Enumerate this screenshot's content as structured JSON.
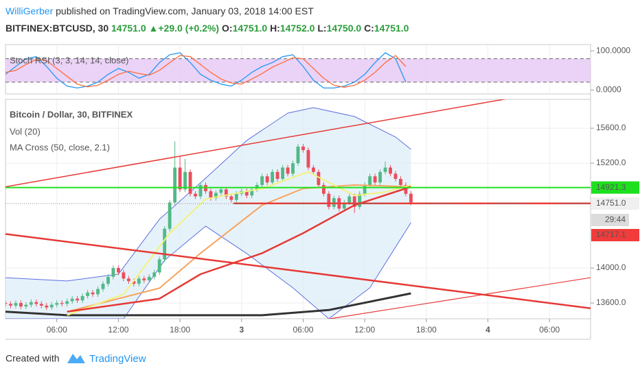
{
  "header": {
    "author": "WilliGerber",
    "published": " published on TradingView.com, January 03, 2018 14:00 EST",
    "symbol": "BITFINEX:BTCUSD, 30",
    "last": "14751.0",
    "arrow": "▲",
    "change": "+29.0 (+0.2%)",
    "o_key": "O:",
    "o_val": "14751.0",
    "h_key": "H:",
    "h_val": "14752.0",
    "l_key": "L:",
    "l_val": "14750.0",
    "c_key": "C:",
    "c_val": "14751.0"
  },
  "footer": {
    "created": "Created with",
    "brand": "TradingView"
  },
  "chart_data": {
    "type": "candlestick",
    "legend": [
      "Bitcoin / Dollar, 30, BITFINEX",
      "Vol (20)",
      "MA Cross (50, close, 2.1)"
    ],
    "up_color": "#53b987",
    "down_color": "#eb4d5c",
    "grid": true,
    "xlim": [
      1,
      58
    ],
    "xticks": [
      {
        "value": 6,
        "label": "06:00"
      },
      {
        "value": 12,
        "label": "12:00"
      },
      {
        "value": 18,
        "label": "18:00"
      },
      {
        "value": 24,
        "label": "3"
      },
      {
        "value": 30,
        "label": "06:00"
      },
      {
        "value": 36,
        "label": "12:00"
      },
      {
        "value": 42,
        "label": "18:00"
      },
      {
        "value": 48,
        "label": "4"
      },
      {
        "value": 54,
        "label": "06:00"
      }
    ],
    "ylim": [
      13420,
      15930
    ],
    "yticks": [
      {
        "value": 13600,
        "label": "13600.0"
      },
      {
        "value": 14000,
        "label": "14000.0"
      },
      {
        "value": 15200,
        "label": "15200.0"
      },
      {
        "value": 15600,
        "label": "15600.0"
      }
    ],
    "x": [
      1,
      1.5,
      2,
      2.5,
      3,
      3.5,
      4,
      4.5,
      5,
      5.5,
      6,
      6.5,
      7,
      7.5,
      8,
      8.5,
      9,
      9.5,
      10,
      10.5,
      11,
      11.5,
      12,
      12.5,
      13,
      13.5,
      14,
      14.5,
      15,
      15.5,
      16,
      16.5,
      17,
      17.5,
      18,
      18.5,
      19,
      19.5,
      20,
      20.5,
      21,
      21.5,
      22,
      22.5,
      23,
      23.5,
      24,
      24.5,
      25,
      25.5,
      26,
      26.5,
      27,
      27.5,
      28,
      28.5,
      29,
      29.5,
      30,
      30.5,
      31,
      31.5,
      32,
      32.5,
      33,
      33.5,
      34,
      34.5,
      35,
      35.5,
      36,
      36.5,
      37,
      37.5,
      38,
      38.5,
      39,
      39.5,
      40,
      40.5
    ],
    "ohlc": [
      [
        13600,
        13630,
        13560,
        13590
      ],
      [
        13590,
        13620,
        13540,
        13570
      ],
      [
        13570,
        13630,
        13540,
        13600
      ],
      [
        13600,
        13630,
        13530,
        13560
      ],
      [
        13560,
        13610,
        13530,
        13580
      ],
      [
        13580,
        13640,
        13550,
        13610
      ],
      [
        13610,
        13640,
        13560,
        13590
      ],
      [
        13590,
        13620,
        13540,
        13570
      ],
      [
        13570,
        13600,
        13520,
        13550
      ],
      [
        13550,
        13610,
        13520,
        13580
      ],
      [
        13580,
        13630,
        13550,
        13600
      ],
      [
        13600,
        13630,
        13560,
        13590
      ],
      [
        13590,
        13650,
        13560,
        13620
      ],
      [
        13620,
        13680,
        13590,
        13650
      ],
      [
        13650,
        13680,
        13600,
        13630
      ],
      [
        13630,
        13710,
        13600,
        13680
      ],
      [
        13680,
        13750,
        13650,
        13720
      ],
      [
        13720,
        13750,
        13670,
        13700
      ],
      [
        13700,
        13790,
        13670,
        13760
      ],
      [
        13760,
        13850,
        13730,
        13820
      ],
      [
        13820,
        13930,
        13790,
        13900
      ],
      [
        13900,
        14030,
        13870,
        14000
      ],
      [
        14000,
        14030,
        13920,
        13950
      ],
      [
        13950,
        13980,
        13850,
        13880
      ],
      [
        13880,
        13910,
        13820,
        13850
      ],
      [
        13850,
        13880,
        13790,
        13820
      ],
      [
        13820,
        13910,
        13790,
        13880
      ],
      [
        13880,
        13910,
        13830,
        13860
      ],
      [
        13860,
        13930,
        13830,
        13900
      ],
      [
        13900,
        13980,
        13870,
        13950
      ],
      [
        13950,
        14130,
        13920,
        14100
      ],
      [
        14100,
        14480,
        14070,
        14450
      ],
      [
        14450,
        14780,
        14420,
        14750
      ],
      [
        14750,
        15450,
        14720,
        15150
      ],
      [
        15150,
        15280,
        14870,
        14900
      ],
      [
        14900,
        15250,
        14870,
        15100
      ],
      [
        15100,
        15130,
        14820,
        14850
      ],
      [
        14850,
        14880,
        14790,
        14820
      ],
      [
        14820,
        14980,
        14790,
        14950
      ],
      [
        14950,
        14980,
        14850,
        14880
      ],
      [
        14880,
        14910,
        14770,
        14800
      ],
      [
        14800,
        14890,
        14770,
        14860
      ],
      [
        14860,
        14930,
        14830,
        14900
      ],
      [
        14900,
        14930,
        14790,
        14820
      ],
      [
        14820,
        14850,
        14750,
        14780
      ],
      [
        14780,
        14880,
        14750,
        14850
      ],
      [
        14850,
        14910,
        14820,
        14880
      ],
      [
        14880,
        14910,
        14800,
        14830
      ],
      [
        14830,
        14930,
        14800,
        14900
      ],
      [
        14900,
        14980,
        14870,
        14950
      ],
      [
        14950,
        15080,
        14920,
        15050
      ],
      [
        15050,
        15080,
        14950,
        14980
      ],
      [
        14980,
        15130,
        14950,
        15100
      ],
      [
        15100,
        15130,
        14990,
        15020
      ],
      [
        15020,
        15180,
        14990,
        15150
      ],
      [
        15150,
        15180,
        15050,
        15080
      ],
      [
        15080,
        15230,
        15050,
        15200
      ],
      [
        15200,
        15420,
        15170,
        15390
      ],
      [
        15390,
        15420,
        15320,
        15350
      ],
      [
        15350,
        15380,
        15120,
        15150
      ],
      [
        15150,
        15180,
        15070,
        15100
      ],
      [
        15100,
        15130,
        14920,
        14950
      ],
      [
        14950,
        14980,
        14820,
        14850
      ],
      [
        14850,
        14880,
        14670,
        14700
      ],
      [
        14700,
        14830,
        14670,
        14800
      ],
      [
        14800,
        14830,
        14650,
        14680
      ],
      [
        14680,
        14780,
        14650,
        14750
      ],
      [
        14750,
        14850,
        14720,
        14820
      ],
      [
        14820,
        14850,
        14630,
        14700
      ],
      [
        14700,
        14880,
        14670,
        14850
      ],
      [
        14850,
        14980,
        14820,
        14950
      ],
      [
        14950,
        15080,
        14920,
        15050
      ],
      [
        15050,
        15080,
        14950,
        14980
      ],
      [
        14980,
        15130,
        14950,
        15100
      ],
      [
        15100,
        15220,
        15070,
        15150
      ],
      [
        15150,
        15180,
        15050,
        15080
      ],
      [
        15080,
        15110,
        14990,
        15020
      ],
      [
        15020,
        15050,
        14920,
        14950
      ],
      [
        14950,
        14980,
        14820,
        14850
      ],
      [
        14850,
        14880,
        14720,
        14751
      ]
    ],
    "bands": {
      "color": "#5b6ee1",
      "fill": "#dcecf8",
      "upper": {
        "x": [
          1,
          7,
          12,
          16,
          20.5,
          24.5,
          28.5,
          31,
          35,
          39,
          40.5
        ],
        "values": [
          13890,
          13852,
          13931,
          14558,
          15028,
          15460,
          15773,
          15836,
          15734,
          15499,
          15358
        ]
      },
      "lower": {
        "x": [
          1,
          12.5,
          16.5,
          20.5,
          24.5,
          29,
          32.5,
          36.5,
          40.5
        ],
        "values": [
          13420,
          13420,
          14088,
          14480,
          14166,
          13774,
          13420,
          13774,
          14519
        ]
      }
    },
    "lines": [
      {
        "color": "#333333",
        "width": 3,
        "x": [
          1,
          7,
          26,
          32.5,
          40.5
        ],
        "values": [
          13500,
          13460,
          13460,
          13520,
          13710
        ]
      },
      {
        "color": "#f7a35c",
        "width": 2,
        "x": [
          7,
          16,
          20,
          26,
          30,
          35,
          40.5
        ],
        "values": [
          13500,
          13770,
          14170,
          14720,
          14910,
          14950,
          14930
        ]
      },
      {
        "color": "#f2f27a",
        "width": 2,
        "x": [
          7,
          12.5,
          17,
          20.5,
          26,
          30.5,
          35,
          38,
          40.5
        ],
        "values": [
          13460,
          13700,
          14400,
          14790,
          14910,
          15100,
          14830,
          14870,
          14950
        ]
      },
      {
        "color": "#e53935",
        "width": 2.5,
        "x": [
          7,
          16,
          20,
          26,
          30,
          35,
          40.5
        ],
        "values": [
          13500,
          13650,
          13930,
          14170,
          14400,
          14720,
          14930
        ]
      }
    ],
    "trend_lines": [
      {
        "color": "#e53935",
        "width": 1.5,
        "x": [
          1,
          50
        ],
        "values": [
          14930,
          15940
        ]
      },
      {
        "color": "#e53935",
        "width": 2.5,
        "x": [
          1,
          58
        ],
        "values": [
          14390,
          13540
        ]
      },
      {
        "color": "#e53935",
        "width": 1.2,
        "x": [
          32.6,
          58
        ],
        "values": [
          13420,
          13890
        ]
      },
      {
        "color": "#e53935",
        "width": 2.5,
        "x": [
          23.2,
          58
        ],
        "values": [
          14740,
          14740
        ]
      }
    ],
    "price_lines": [
      {
        "value": 14921.3,
        "color": "#1ee01e"
      }
    ],
    "badges": [
      {
        "label": "14751.0",
        "color": "#f0f0f0",
        "text": "#333333"
      },
      {
        "label": "29:44",
        "color": "#dcdcdc",
        "text": "#333333"
      },
      {
        "label": "14717.1",
        "color": "#f23b3b",
        "text": "#ffffff"
      }
    ],
    "stoch": {
      "title": "Stoch RSI (3, 3, 14, 14, close)",
      "ylim": [
        -10,
        116
      ],
      "yticks": [
        {
          "value": 0,
          "label": "0.0000"
        },
        {
          "value": 100,
          "label": "100.0000"
        }
      ],
      "band": [
        20,
        80
      ],
      "band_color": "#e6c8f5",
      "x": [
        1,
        2,
        3,
        4,
        5,
        6,
        7,
        8,
        9,
        10,
        11,
        12,
        13,
        14,
        15,
        16,
        17,
        18,
        19,
        20,
        21,
        22,
        23,
        24,
        25,
        26,
        27,
        28,
        29,
        30,
        31,
        32,
        33,
        34,
        35,
        36,
        37,
        38,
        39,
        40
      ],
      "series": [
        {
          "color": "#2196f3",
          "values": [
            40,
            60,
            80,
            85,
            60,
            30,
            10,
            5,
            10,
            20,
            40,
            55,
            45,
            30,
            40,
            70,
            90,
            95,
            70,
            40,
            25,
            15,
            10,
            25,
            45,
            60,
            70,
            85,
            90,
            60,
            25,
            5,
            5,
            10,
            20,
            40,
            70,
            95,
            80,
            20
          ]
        },
        {
          "color": "#ff6d3a",
          "values": [
            45,
            50,
            65,
            78,
            75,
            55,
            35,
            15,
            8,
            12,
            25,
            40,
            48,
            42,
            38,
            50,
            70,
            88,
            85,
            65,
            45,
            28,
            18,
            15,
            28,
            42,
            58,
            70,
            82,
            80,
            55,
            30,
            12,
            7,
            12,
            25,
            45,
            70,
            88,
            60
          ]
        }
      ]
    }
  }
}
